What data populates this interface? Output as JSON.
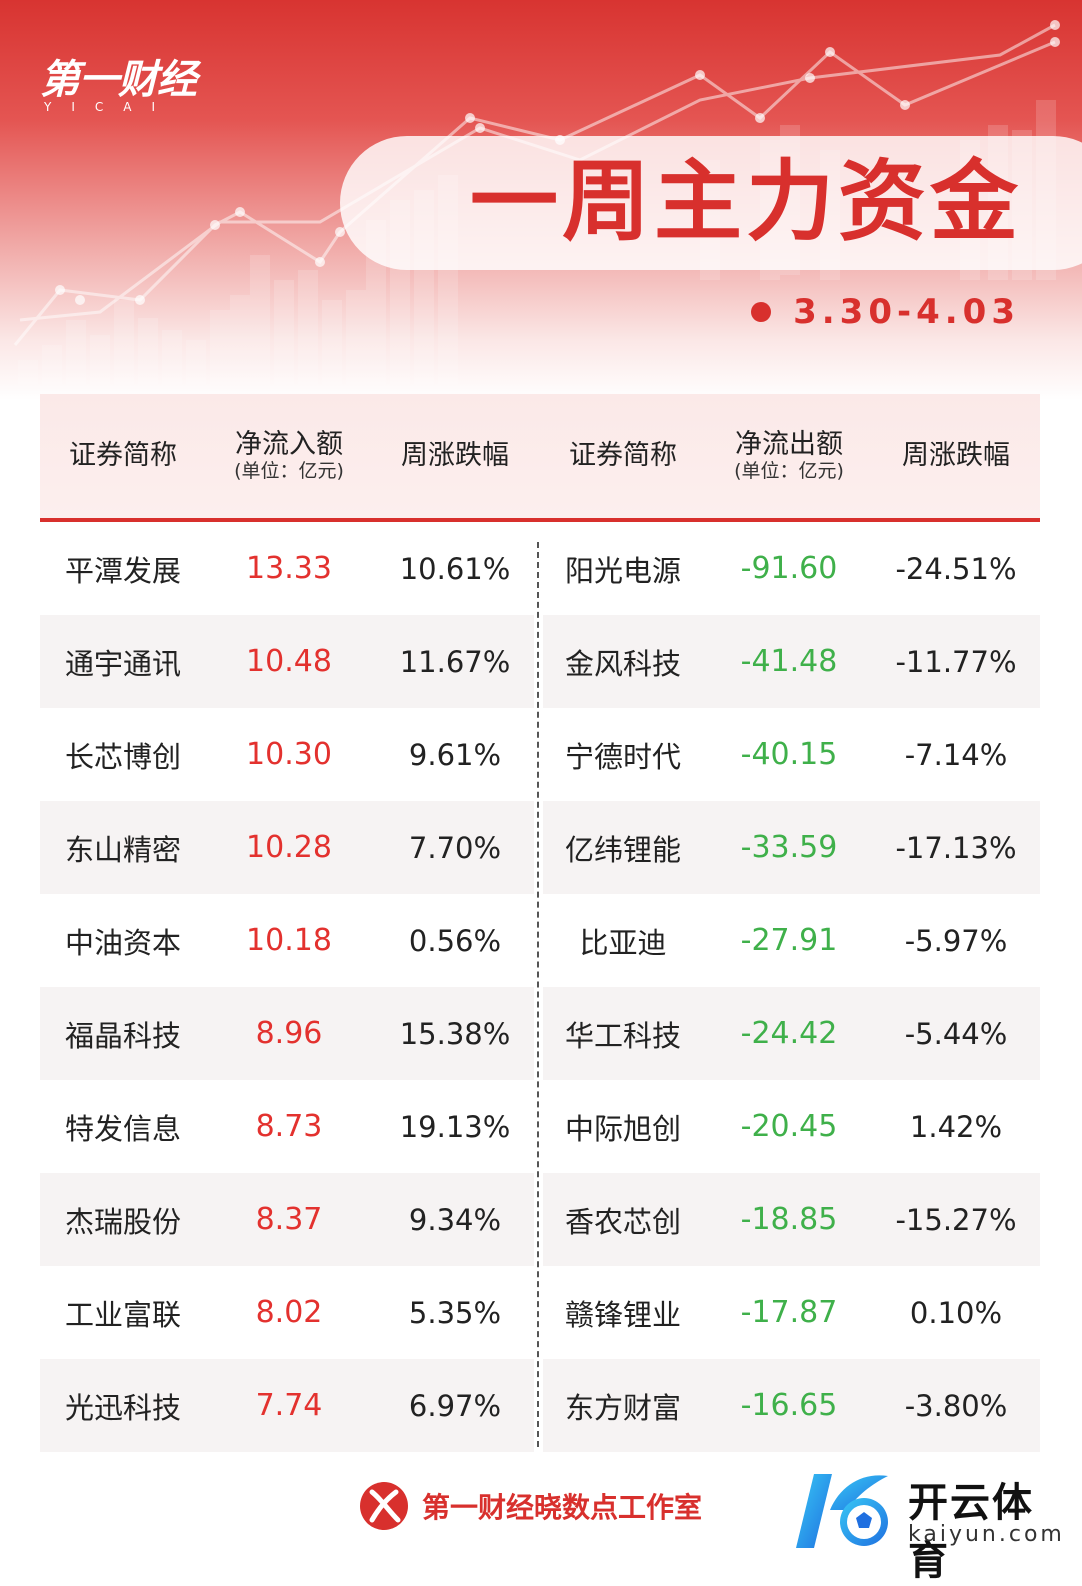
{
  "header": {
    "logo_main": "第一财经",
    "logo_sub": "YICAI",
    "title": "一周主力资金",
    "date": "3.30-4.03"
  },
  "columns": {
    "left": [
      {
        "main": "证券简称",
        "sub": ""
      },
      {
        "main": "净流入额",
        "sub": "(单位：亿元)"
      },
      {
        "main": "周涨跌幅",
        "sub": ""
      }
    ],
    "right": [
      {
        "main": "证券简称",
        "sub": ""
      },
      {
        "main": "净流出额",
        "sub": "(单位：亿元)"
      },
      {
        "main": "周涨跌幅",
        "sub": ""
      }
    ]
  },
  "rows": [
    {
      "in_name": "平潭发展",
      "in_amount": "13.33",
      "in_change": "10.61%",
      "out_name": "阳光电源",
      "out_amount": "-91.60",
      "out_change": "-24.51%"
    },
    {
      "in_name": "通宇通讯",
      "in_amount": "10.48",
      "in_change": "11.67%",
      "out_name": "金风科技",
      "out_amount": "-41.48",
      "out_change": "-11.77%"
    },
    {
      "in_name": "长芯博创",
      "in_amount": "10.30",
      "in_change": "9.61%",
      "out_name": "宁德时代",
      "out_amount": "-40.15",
      "out_change": "-7.14%"
    },
    {
      "in_name": "东山精密",
      "in_amount": "10.28",
      "in_change": "7.70%",
      "out_name": "亿纬锂能",
      "out_amount": "-33.59",
      "out_change": "-17.13%"
    },
    {
      "in_name": "中油资本",
      "in_amount": "10.18",
      "in_change": "0.56%",
      "out_name": "比亚迪",
      "out_amount": "-27.91",
      "out_change": "-5.97%"
    },
    {
      "in_name": "福晶科技",
      "in_amount": "8.96",
      "in_change": "15.38%",
      "out_name": "华工科技",
      "out_amount": "-24.42",
      "out_change": "-5.44%"
    },
    {
      "in_name": "特发信息",
      "in_amount": "8.73",
      "in_change": "19.13%",
      "out_name": "中际旭创",
      "out_amount": "-20.45",
      "out_change": "1.42%"
    },
    {
      "in_name": "杰瑞股份",
      "in_amount": "8.37",
      "in_change": "9.34%",
      "out_name": "香农芯创",
      "out_amount": "-18.85",
      "out_change": "-15.27%"
    },
    {
      "in_name": "工业富联",
      "in_amount": "8.02",
      "in_change": "5.35%",
      "out_name": "赣锋锂业",
      "out_amount": "-17.87",
      "out_change": "0.10%"
    },
    {
      "in_name": "光迅科技",
      "in_amount": "7.74",
      "in_change": "6.97%",
      "out_name": "东方财富",
      "out_amount": "-16.65",
      "out_change": "-3.80%"
    }
  ],
  "footer": {
    "studio": "第一财经晓数点工作室",
    "brand_cn": "开云体育",
    "brand_en": "kaiyun.com"
  },
  "colors": {
    "accent_red": "#d8302d",
    "inflow_red": "#e3312e",
    "outflow_green": "#3fb04a"
  },
  "icons": {
    "studio_logo": "yicai-x-icon",
    "brand_logo": "kaiyun-k-ball-icon"
  }
}
